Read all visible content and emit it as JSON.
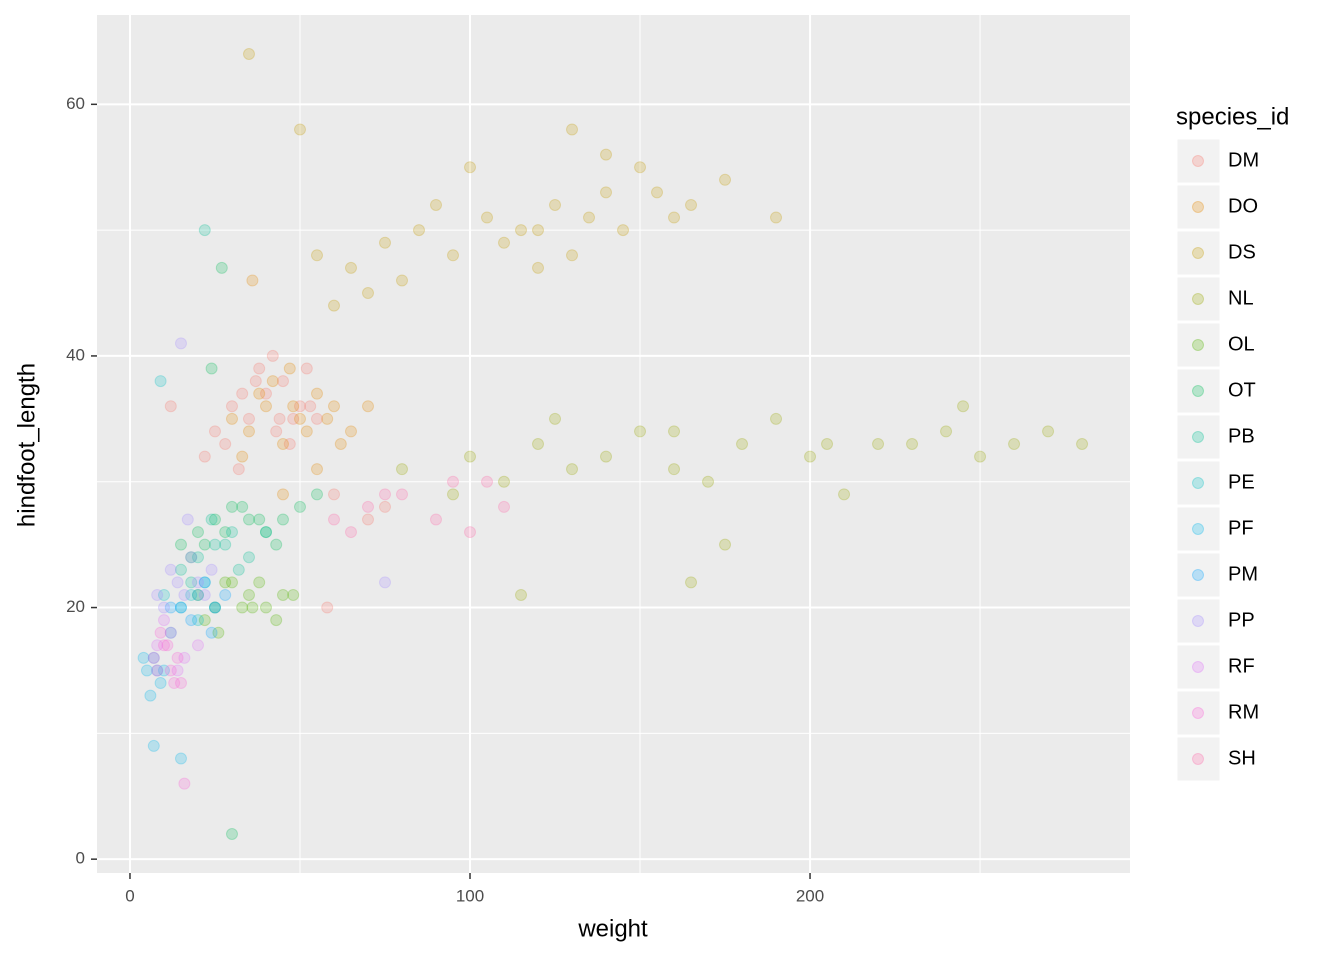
{
  "chart_data": {
    "type": "scatter",
    "x_label": "weight",
    "y_label": "hindfoot_length",
    "legend_title": "species_id",
    "legend_position": "right",
    "xlim": [
      -9.7,
      294.1
    ],
    "ylim": [
      -1.1,
      67.1
    ],
    "xticks": [
      0,
      100,
      200
    ],
    "yticks": [
      0,
      20,
      40,
      60
    ],
    "x_minor_ticks": [
      50,
      150,
      250
    ],
    "y_minor_ticks": [
      10,
      30,
      50
    ],
    "grid": true,
    "series": [
      {
        "name": "DM",
        "color": "#F8766D",
        "x": [
          25,
          30,
          35,
          40,
          45,
          50,
          55,
          28,
          33,
          38,
          43,
          48,
          53,
          22,
          42,
          47,
          37,
          32,
          52,
          60,
          70,
          75,
          12,
          58,
          44
        ],
        "values": [
          34,
          36,
          35,
          37,
          38,
          36,
          35,
          33,
          37,
          39,
          34,
          35,
          36,
          32,
          40,
          33,
          38,
          31,
          39,
          29,
          27,
          28,
          36,
          20,
          35
        ]
      },
      {
        "name": "DO",
        "color": "#E38900",
        "x": [
          30,
          35,
          40,
          45,
          50,
          55,
          60,
          65,
          42,
          48,
          52,
          58,
          38,
          62,
          70,
          33,
          47,
          55,
          45,
          36
        ],
        "values": [
          35,
          34,
          36,
          33,
          35,
          37,
          36,
          34,
          38,
          36,
          34,
          35,
          37,
          33,
          36,
          32,
          39,
          31,
          29,
          46
        ]
      },
      {
        "name": "DS",
        "color": "#C49A00",
        "x": [
          55,
          65,
          75,
          85,
          95,
          105,
          115,
          125,
          135,
          145,
          155,
          165,
          175,
          100,
          110,
          120,
          130,
          140,
          150,
          90,
          120,
          130,
          140,
          160,
          80,
          70,
          60,
          190,
          35,
          50
        ],
        "values": [
          48,
          47,
          49,
          50,
          48,
          51,
          50,
          52,
          51,
          50,
          53,
          52,
          54,
          55,
          49,
          47,
          48,
          53,
          55,
          52,
          50,
          58,
          56,
          51,
          46,
          45,
          44,
          51,
          64,
          58
        ]
      },
      {
        "name": "NL",
        "color": "#99A800",
        "x": [
          80,
          100,
          120,
          140,
          160,
          180,
          200,
          220,
          240,
          260,
          280,
          110,
          130,
          150,
          170,
          190,
          210,
          230,
          250,
          270,
          95,
          125,
          165,
          205,
          245,
          115,
          160,
          175
        ],
        "values": [
          31,
          32,
          33,
          32,
          34,
          33,
          32,
          33,
          34,
          33,
          33,
          30,
          31,
          34,
          30,
          35,
          29,
          33,
          32,
          34,
          29,
          35,
          22,
          33,
          36,
          21,
          31,
          25
        ]
      },
      {
        "name": "OL",
        "color": "#53B400",
        "x": [
          20,
          25,
          30,
          35,
          40,
          45,
          22,
          28,
          33,
          38,
          43,
          48,
          26,
          36
        ],
        "values": [
          21,
          20,
          22,
          21,
          20,
          21,
          19,
          22,
          20,
          22,
          19,
          21,
          18,
          20
        ]
      },
      {
        "name": "OT",
        "color": "#00BC56",
        "x": [
          15,
          20,
          25,
          30,
          35,
          40,
          45,
          50,
          22,
          28,
          33,
          38,
          43,
          18,
          55,
          24,
          30,
          27
        ],
        "values": [
          25,
          26,
          27,
          28,
          27,
          26,
          27,
          28,
          25,
          26,
          28,
          27,
          25,
          24,
          29,
          39,
          2,
          47
        ]
      },
      {
        "name": "PB",
        "color": "#00C094",
        "x": [
          15,
          20,
          25,
          30,
          35,
          18,
          28,
          40,
          24,
          32,
          22
        ],
        "values": [
          23,
          24,
          25,
          26,
          24,
          22,
          25,
          26,
          27,
          23,
          50
        ]
      },
      {
        "name": "PE",
        "color": "#00BFC4",
        "x": [
          10,
          15,
          20,
          25,
          12,
          18,
          22,
          9
        ],
        "values": [
          21,
          20,
          19,
          20,
          18,
          21,
          22,
          38
        ]
      },
      {
        "name": "PF",
        "color": "#00B6EB",
        "x": [
          5,
          7,
          9,
          6,
          8,
          4,
          10,
          7,
          15
        ],
        "values": [
          15,
          16,
          14,
          13,
          15,
          16,
          15,
          9,
          8
        ]
      },
      {
        "name": "PM",
        "color": "#06A4FF",
        "x": [
          15,
          20,
          25,
          18,
          22,
          28,
          12,
          24
        ],
        "values": [
          20,
          21,
          20,
          19,
          22,
          21,
          20,
          18
        ]
      },
      {
        "name": "PP",
        "color": "#A58AFF",
        "x": [
          10,
          14,
          18,
          22,
          12,
          16,
          20,
          24,
          8,
          15,
          75,
          17
        ],
        "values": [
          20,
          22,
          24,
          21,
          23,
          21,
          22,
          23,
          21,
          41,
          22,
          27
        ]
      },
      {
        "name": "RF",
        "color": "#DF70F8",
        "x": [
          8,
          12,
          16,
          14,
          10,
          20
        ],
        "values": [
          17,
          18,
          16,
          15,
          19,
          17
        ]
      },
      {
        "name": "RM",
        "color": "#FB61D7",
        "x": [
          7,
          10,
          12,
          14,
          9,
          11,
          13,
          8,
          15,
          16
        ],
        "values": [
          16,
          17,
          15,
          16,
          18,
          17,
          14,
          15,
          14,
          6
        ]
      },
      {
        "name": "SH",
        "color": "#FF66A8",
        "x": [
          70,
          80,
          90,
          100,
          110,
          60,
          65,
          75,
          95,
          105
        ],
        "values": [
          28,
          29,
          27,
          26,
          28,
          27,
          26,
          29,
          30,
          30
        ]
      }
    ]
  }
}
